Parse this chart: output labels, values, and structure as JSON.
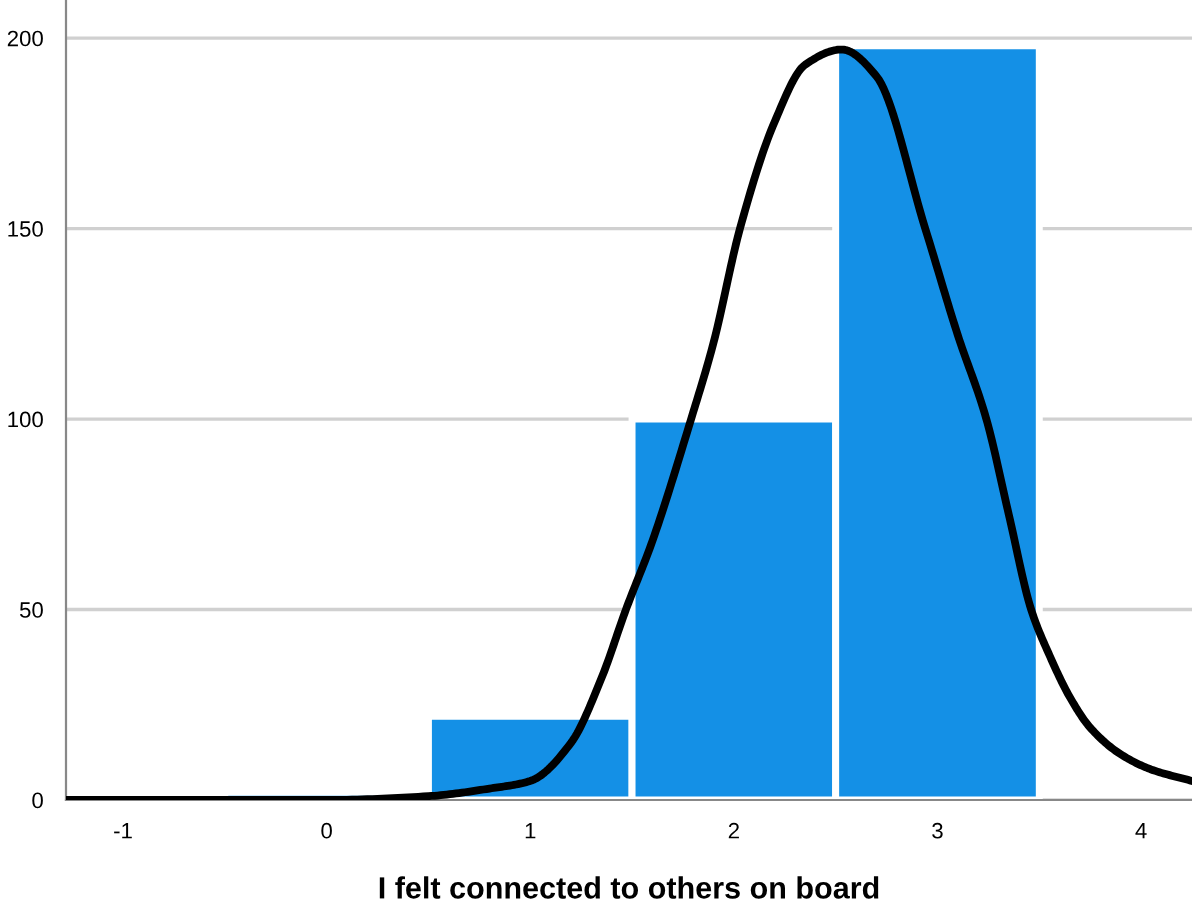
{
  "chart_data": {
    "type": "histogram",
    "xlabel": "I felt connected to others on board",
    "bins": [
      -0.5,
      0.5,
      1.5,
      2.5,
      3.5
    ],
    "values": [
      2,
      22,
      100,
      198
    ],
    "color": "#1490e6",
    "series": [
      {
        "type": "line",
        "color": "#000000",
        "x": [
          -1.28,
          0,
          0.5,
          0.8,
          1.0,
          1.2,
          1.35,
          1.47,
          1.6,
          1.79,
          1.9,
          2.03,
          2.2,
          2.35,
          2.53,
          2.7,
          2.94,
          3.1,
          3.24,
          3.35,
          3.46,
          3.55,
          3.65,
          3.75,
          3.9,
          4.05,
          4.25
        ],
        "values": [
          0,
          0,
          1,
          3,
          5,
          15,
          32,
          50,
          68,
          100,
          120,
          150,
          178,
          193,
          197,
          190,
          150,
          122,
          100,
          75,
          50,
          38,
          27,
          19,
          12,
          8,
          5
        ]
      }
    ],
    "xlim": [
      -1.28,
      4.25
    ],
    "ylim": [
      0,
      210
    ],
    "xticks": [
      -1,
      0,
      1,
      2,
      3,
      4
    ],
    "yticks": [
      0,
      50,
      100,
      150,
      200
    ],
    "grid": "y"
  }
}
